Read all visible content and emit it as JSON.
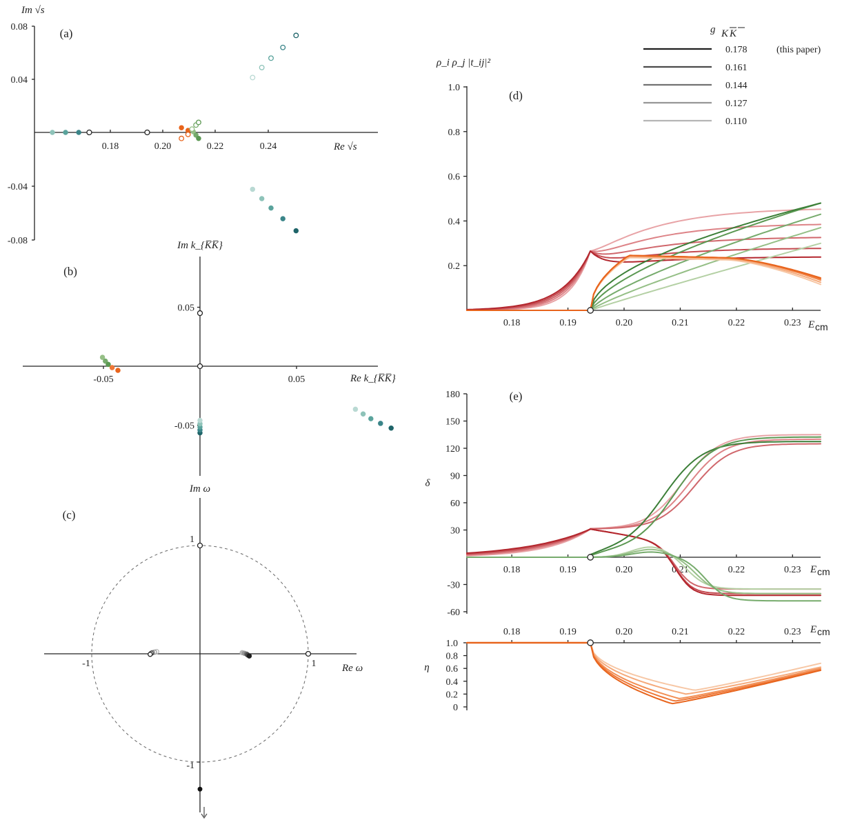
{
  "legend": {
    "title": "g_{K̅K̅}",
    "entries": [
      "0.178",
      "0.161",
      "0.144",
      "0.127",
      "0.110"
    ],
    "note": "(this paper)",
    "greys": [
      "#1f1f1f",
      "#4a4a4a",
      "#727272",
      "#969696",
      "#b5b5b5"
    ]
  },
  "colors": {
    "teal": [
      "#b9d9d3",
      "#8ec3b9",
      "#5aa39c",
      "#3b8589",
      "#1f6469"
    ],
    "green": [
      "#b4d0a4",
      "#95bf86",
      "#76ab6c",
      "#5b9852",
      "#3c7f38"
    ],
    "red": [
      "#e8a3a6",
      "#dd8387",
      "#d0676c",
      "#c44a50",
      "#b3262d"
    ],
    "orange": [
      "#f7c7a5",
      "#f5aa7b",
      "#f28f55",
      "#ee7737",
      "#e8641c"
    ]
  },
  "chart_data": [
    {
      "panel": "(a)",
      "type": "scatter",
      "xlabel": "Re √s",
      "ylabel": "Im √s",
      "xticks": [
        "0.18",
        "0.20",
        "0.22",
        "0.24"
      ],
      "yticks": [
        "0.08",
        "0.04",
        "-0.04",
        "-0.08"
      ],
      "ylim": [
        -0.08,
        0.08
      ],
      "series": [
        {
          "group": "virtual",
          "filled": true,
          "points": [
            [
              0.158,
              0
            ],
            [
              0.163,
              0
            ],
            [
              0.168,
              0
            ],
            [
              0.172,
              0
            ]
          ]
        },
        {
          "group": "threshold",
          "filled": false,
          "points": [
            [
              0.172,
              0
            ],
            [
              0.194,
              0
            ]
          ]
        },
        {
          "group": "orange_filled",
          "filled": true,
          "points": [
            [
              0.207,
              0.0035
            ],
            [
              0.2095,
              0.0015
            ]
          ]
        },
        {
          "group": "orange_open",
          "filled": false,
          "points": [
            [
              0.207,
              -0.0045
            ],
            [
              0.2095,
              -0.0015
            ]
          ]
        },
        {
          "group": "green_filled",
          "filled": true,
          "points": [
            [
              0.2115,
              0.0005
            ],
            [
              0.2125,
              -0.002
            ],
            [
              0.2135,
              -0.0045
            ]
          ]
        },
        {
          "group": "green_open",
          "filled": false,
          "points": [
            [
              0.211,
              0.0025
            ],
            [
              0.2125,
              0.0055
            ],
            [
              0.2135,
              0.0075
            ]
          ]
        },
        {
          "group": "teal_open",
          "filled": false,
          "points": [
            [
              0.234,
              0.041
            ],
            [
              0.2375,
              0.0485
            ],
            [
              0.241,
              0.0555
            ],
            [
              0.2455,
              0.0635
            ],
            [
              0.2505,
              0.0725
            ]
          ]
        },
        {
          "group": "teal_filled",
          "filled": true,
          "points": [
            [
              0.234,
              -0.0425
            ],
            [
              0.2375,
              -0.0495
            ],
            [
              0.241,
              -0.0565
            ],
            [
              0.2455,
              -0.0645
            ],
            [
              0.2505,
              -0.0735
            ]
          ]
        }
      ]
    },
    {
      "panel": "(b)",
      "type": "scatter",
      "xlabel": "Re k_{K̅K̅}",
      "ylabel": "Im k_{K̅K̅}",
      "xticks": [
        "-0.05",
        "0.05"
      ],
      "yticks": [
        "0.05",
        "-0.05"
      ],
      "series": [
        {
          "group": "threshold",
          "filled": false,
          "points": [
            [
              0,
              0.045
            ],
            [
              0,
              0
            ]
          ]
        },
        {
          "group": "green_orange",
          "filled": true,
          "points": [
            [
              -0.0505,
              0.0075
            ],
            [
              -0.049,
              0.0043
            ],
            [
              -0.0475,
              0.0015
            ],
            [
              -0.0455,
              -0.0012
            ],
            [
              -0.0425,
              -0.0035
            ]
          ]
        },
        {
          "group": "virtual_axis",
          "filled": true,
          "points": [
            [
              0,
              -0.0565
            ],
            [
              0,
              -0.054
            ],
            [
              0,
              -0.0515
            ],
            [
              0,
              -0.0488
            ],
            [
              0,
              -0.046
            ]
          ]
        },
        {
          "group": "teal",
          "filled": true,
          "points": [
            [
              0.0805,
              -0.0365
            ],
            [
              0.0845,
              -0.0405
            ],
            [
              0.0885,
              -0.0445
            ],
            [
              0.0935,
              -0.0485
            ],
            [
              0.099,
              -0.0525
            ]
          ]
        }
      ]
    },
    {
      "panel": "(c)",
      "type": "scatter",
      "xlabel": "Re ω",
      "ylabel": "Im ω",
      "xticks": [
        "-1",
        "1"
      ],
      "yticks": [
        "1",
        "-1"
      ],
      "unit_circle": true,
      "series": [
        {
          "group": "axis_points",
          "filled": false,
          "points": [
            [
              0,
              1
            ],
            [
              1,
              0
            ]
          ]
        },
        {
          "group": "left_cluster",
          "filled": false,
          "points": [
            [
              -0.4,
              0.02
            ],
            [
              -0.42,
              0.015
            ],
            [
              -0.44,
              0.01
            ],
            [
              -0.45,
              0.005
            ],
            [
              -0.46,
              -0.005
            ]
          ]
        },
        {
          "group": "right_cluster",
          "filled": true,
          "points": [
            [
              0.39,
              0.01
            ],
            [
              0.41,
              0.005
            ],
            [
              0.43,
              -0.002
            ],
            [
              0.44,
              -0.01
            ],
            [
              0.455,
              -0.02
            ]
          ]
        },
        {
          "group": "below",
          "filled": true,
          "points": [
            [
              0,
              -1.25
            ],
            [
              0,
              -1.65
            ]
          ]
        }
      ]
    },
    {
      "panel": "(d)",
      "type": "line",
      "ylabel": "ρ_i ρ_j |t_ij|²",
      "xlabel": "E_cm",
      "xticks": [
        "0.18",
        "0.19",
        "0.20",
        "0.21",
        "0.22",
        "0.23"
      ],
      "yticks": [
        "0.2",
        "0.4",
        "0.6",
        "0.8",
        "1.0"
      ],
      "xlim": [
        0.172,
        0.235
      ],
      "ylim": [
        0,
        1.0
      ],
      "threshold": 0.194,
      "series": [
        {
          "color": "red",
          "peak": [
            0.23,
            0.235,
            0.24,
            0.245,
            0.25
          ],
          "tail": [
            0.46,
            0.39,
            0.33,
            0.28,
            0.24
          ]
        },
        {
          "color": "green",
          "end": [
            0.3,
            0.37,
            0.43,
            0.48,
            0.48
          ]
        },
        {
          "color": "orange",
          "max": [
            0.24,
            0.245,
            0.25,
            0.25,
            0.25
          ],
          "end": [
            0.14,
            0.15,
            0.16,
            0.165,
            0.17
          ]
        }
      ]
    },
    {
      "panel": "(e)",
      "type": "line",
      "ylabel": "δ",
      "xlabel": "E_cm",
      "xticks": [
        "0.18",
        "0.19",
        "0.20",
        "0.21",
        "0.22",
        "0.23"
      ],
      "yticks": [
        "180",
        "150",
        "120",
        "90",
        "60",
        "30",
        "-30",
        "-60"
      ],
      "xlim": [
        0.172,
        0.235
      ],
      "ylim": [
        -60,
        180
      ],
      "threshold": 0.194,
      "series": [
        {
          "color": "red",
          "label": "upper",
          "end": [
            135,
            130,
            125
          ]
        },
        {
          "color": "red",
          "label": "lower",
          "end": [
            -35,
            -40,
            -42
          ]
        },
        {
          "color": "green",
          "label": "upper",
          "end": [
            120,
            125
          ]
        },
        {
          "color": "green",
          "label": "lower",
          "end": [
            -35,
            -40,
            -48
          ]
        }
      ]
    },
    {
      "panel": "eta",
      "type": "line",
      "ylabel": "η",
      "xlabel": "E_cm",
      "xticks": [
        "0.18",
        "0.19",
        "0.20",
        "0.21",
        "0.22",
        "0.23"
      ],
      "yticks": [
        "1.0",
        "0.8",
        "0.6",
        "0.4",
        "0.2",
        "0"
      ],
      "xlim": [
        0.172,
        0.235
      ],
      "ylim": [
        0,
        1.0
      ],
      "threshold": 0.194,
      "series": [
        {
          "color": "orange",
          "min_x": [
            0.2125,
            0.211,
            0.2098,
            0.209,
            0.2085
          ],
          "min_y": [
            0.26,
            0.2,
            0.13,
            0.09,
            0.05
          ],
          "end": [
            0.68,
            0.62,
            0.6,
            0.58,
            0.57
          ]
        }
      ]
    }
  ],
  "labels": {
    "a": "(a)",
    "b": "(b)",
    "c": "(c)",
    "d": "(d)",
    "e": "(e)",
    "ecm": "cm"
  }
}
